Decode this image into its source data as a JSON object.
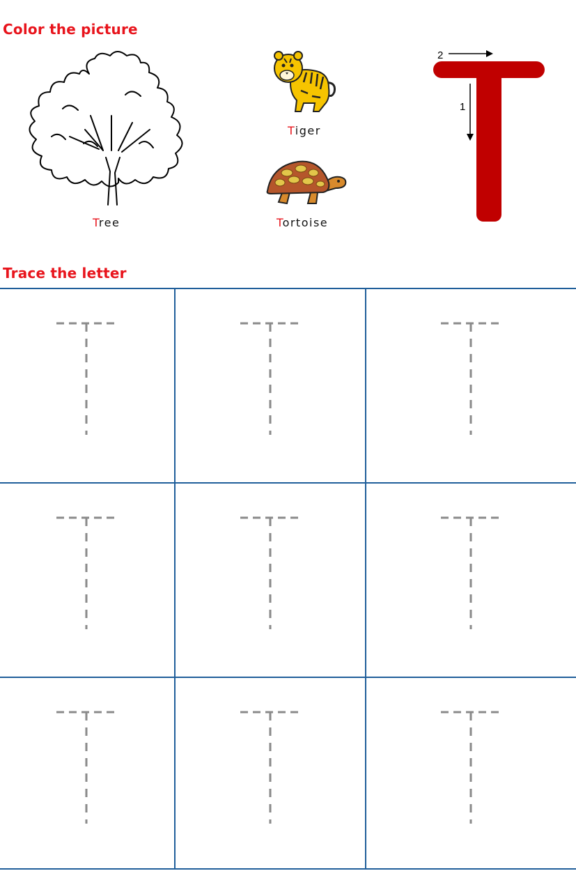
{
  "headings": {
    "color": "Color the picture",
    "trace": "Trace the letter"
  },
  "pictures": [
    {
      "name": "tree",
      "caption_first": "T",
      "caption_rest": "ree"
    },
    {
      "name": "tiger",
      "caption_first": "T",
      "caption_rest": "iger"
    },
    {
      "name": "tortoise",
      "caption_first": "T",
      "caption_rest": "ortoise"
    }
  ],
  "letter": {
    "glyph": "T",
    "stroke_labels": [
      "1",
      "2"
    ],
    "color": "#c00000"
  },
  "trace_grid": {
    "rows": 3,
    "cols": 3,
    "letter": "T",
    "dash_color": "#8a8a8a",
    "border_color": "#1f5e9a"
  },
  "colors": {
    "heading": "#e8141c",
    "caption_initial": "#e8141c"
  }
}
